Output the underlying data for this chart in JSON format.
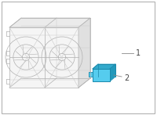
{
  "bg_color": "#ffffff",
  "lc": "#b0b0b0",
  "lc_dark": "#888888",
  "lc_light": "#cccccc",
  "module_front": "#55ccee",
  "module_dark": "#2299bb",
  "module_mid": "#33aacc",
  "label_color": "#444444",
  "border_color": "#aaaaaa",
  "shroud_fill": "#f5f5f5",
  "side_fill": "#e0e0e0",
  "top_fill": "#ebebeb"
}
